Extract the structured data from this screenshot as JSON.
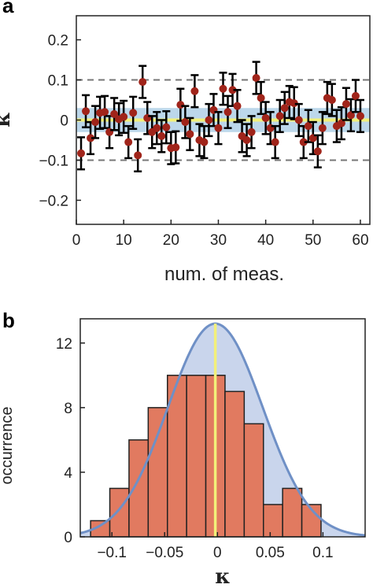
{
  "chart_data": [
    {
      "panel_label": "a",
      "type": "scatter",
      "xlabel": "num. of meas.",
      "ylabel": "κ",
      "xlim": [
        0,
        62
      ],
      "ylim": [
        -0.26,
        0.26
      ],
      "xticks": [
        0,
        10,
        20,
        30,
        40,
        50,
        60
      ],
      "yticks": [
        -0.2,
        -0.1,
        0,
        0.1,
        0.2
      ],
      "ytick_labels": [
        "−0.2",
        "−0.1",
        "0",
        "0.1",
        "0.2"
      ],
      "reference_lines": {
        "dashed": [
          -0.1,
          0.1
        ],
        "mean_line": 0.0,
        "band": [
          -0.03,
          0.03
        ]
      },
      "series": [
        {
          "x": [
            1,
            2,
            3,
            4,
            5,
            6,
            7,
            8,
            9,
            10,
            11,
            12,
            13,
            14,
            15,
            16,
            17,
            18,
            19,
            20,
            21,
            22,
            23,
            24,
            25,
            26,
            27,
            28,
            29,
            30,
            31,
            32,
            33,
            34,
            35,
            36,
            37,
            38,
            39,
            40,
            41,
            42,
            43,
            44,
            45,
            46,
            47,
            48,
            49,
            50,
            51,
            52,
            53,
            54,
            55,
            56,
            57,
            58,
            59,
            60
          ],
          "y": [
            -0.083,
            0.022,
            -0.045,
            -0.005,
            0.018,
            0.02,
            -0.03,
            0.015,
            0.002,
            0.008,
            -0.055,
            0.018,
            -0.088,
            0.095,
            0.005,
            -0.03,
            -0.02,
            -0.04,
            -0.018,
            -0.07,
            -0.068,
            0.038,
            -0.005,
            -0.035,
            0.072,
            -0.05,
            -0.055,
            0.0,
            0.025,
            -0.02,
            0.078,
            0.02,
            0.075,
            0.035,
            -0.04,
            -0.05,
            -0.03,
            0.105,
            0.055,
            0.005,
            -0.02,
            -0.055,
            0.01,
            0.03,
            0.045,
            0.042,
            0.0,
            -0.055,
            -0.015,
            -0.045,
            -0.078,
            -0.02,
            0.055,
            0.05,
            -0.015,
            -0.008,
            0.04,
            0.012,
            0.06,
            0.01
          ],
          "error": 0.04
        }
      ]
    },
    {
      "panel_label": "b",
      "type": "bar",
      "xlabel": "κ",
      "ylabel": "occurrence",
      "xlim": [
        -0.13,
        0.14
      ],
      "ylim": [
        0,
        13.5
      ],
      "xticks": [
        -0.1,
        -0.05,
        0,
        0.05,
        0.1
      ],
      "xtick_labels": [
        "−0.1",
        "−0.05",
        "0",
        "0.05",
        "0.1"
      ],
      "yticks": [
        0,
        4,
        8,
        12
      ],
      "bin_width": 0.0182,
      "bin_starts": [
        -0.1202,
        -0.102,
        -0.0838,
        -0.0656,
        -0.0474,
        -0.0292,
        -0.011,
        0.0072,
        0.0254,
        0.0436,
        0.0618,
        0.08
      ],
      "values": [
        1,
        3,
        6,
        8,
        10,
        10,
        10,
        9,
        7,
        2,
        3,
        2
      ],
      "fit": {
        "type": "gaussian",
        "mean": -0.002,
        "sigma": 0.045,
        "peak": 13.2
      },
      "mean_line": -0.002
    }
  ],
  "colors": {
    "marker": "#a0241a",
    "errorbar": "#000000",
    "band": "#bcd7ea",
    "mean_line": "#f2f07a",
    "dashed": "#777777",
    "bar_fill": "#e17a60",
    "bar_edge": "#222222",
    "fit_fill": "#c9d5ec",
    "fit_line": "#6f90c6"
  }
}
